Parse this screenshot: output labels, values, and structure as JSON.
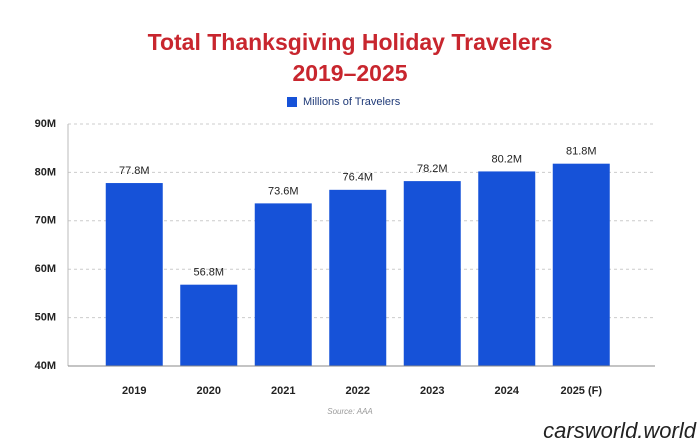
{
  "chart_data": {
    "type": "bar",
    "title": "Total Thanksgiving Holiday Travelers",
    "subtitle": "2019–2025",
    "categories": [
      "2019",
      "2020",
      "2021",
      "2022",
      "2023",
      "2024",
      "2025 (F)"
    ],
    "series": [
      {
        "name": "Millions of Travelers",
        "color": "#1652d8",
        "values": [
          77.8,
          56.8,
          73.6,
          76.4,
          78.2,
          80.2,
          81.8
        ],
        "value_labels": [
          "77.8M",
          "56.8M",
          "73.6M",
          "76.4M",
          "78.2M",
          "80.2M",
          "81.8M"
        ]
      }
    ],
    "ylim": [
      40,
      90
    ],
    "yticks": [
      {
        "value": 40,
        "label": "40M"
      },
      {
        "value": 50,
        "label": "50M"
      },
      {
        "value": 60,
        "label": "60M"
      },
      {
        "value": 70,
        "label": "70M"
      },
      {
        "value": 80,
        "label": "80M"
      },
      {
        "value": 90,
        "label": "90M"
      }
    ],
    "grid": true,
    "source": "Source: AAA",
    "watermark": "carsworld.world"
  }
}
